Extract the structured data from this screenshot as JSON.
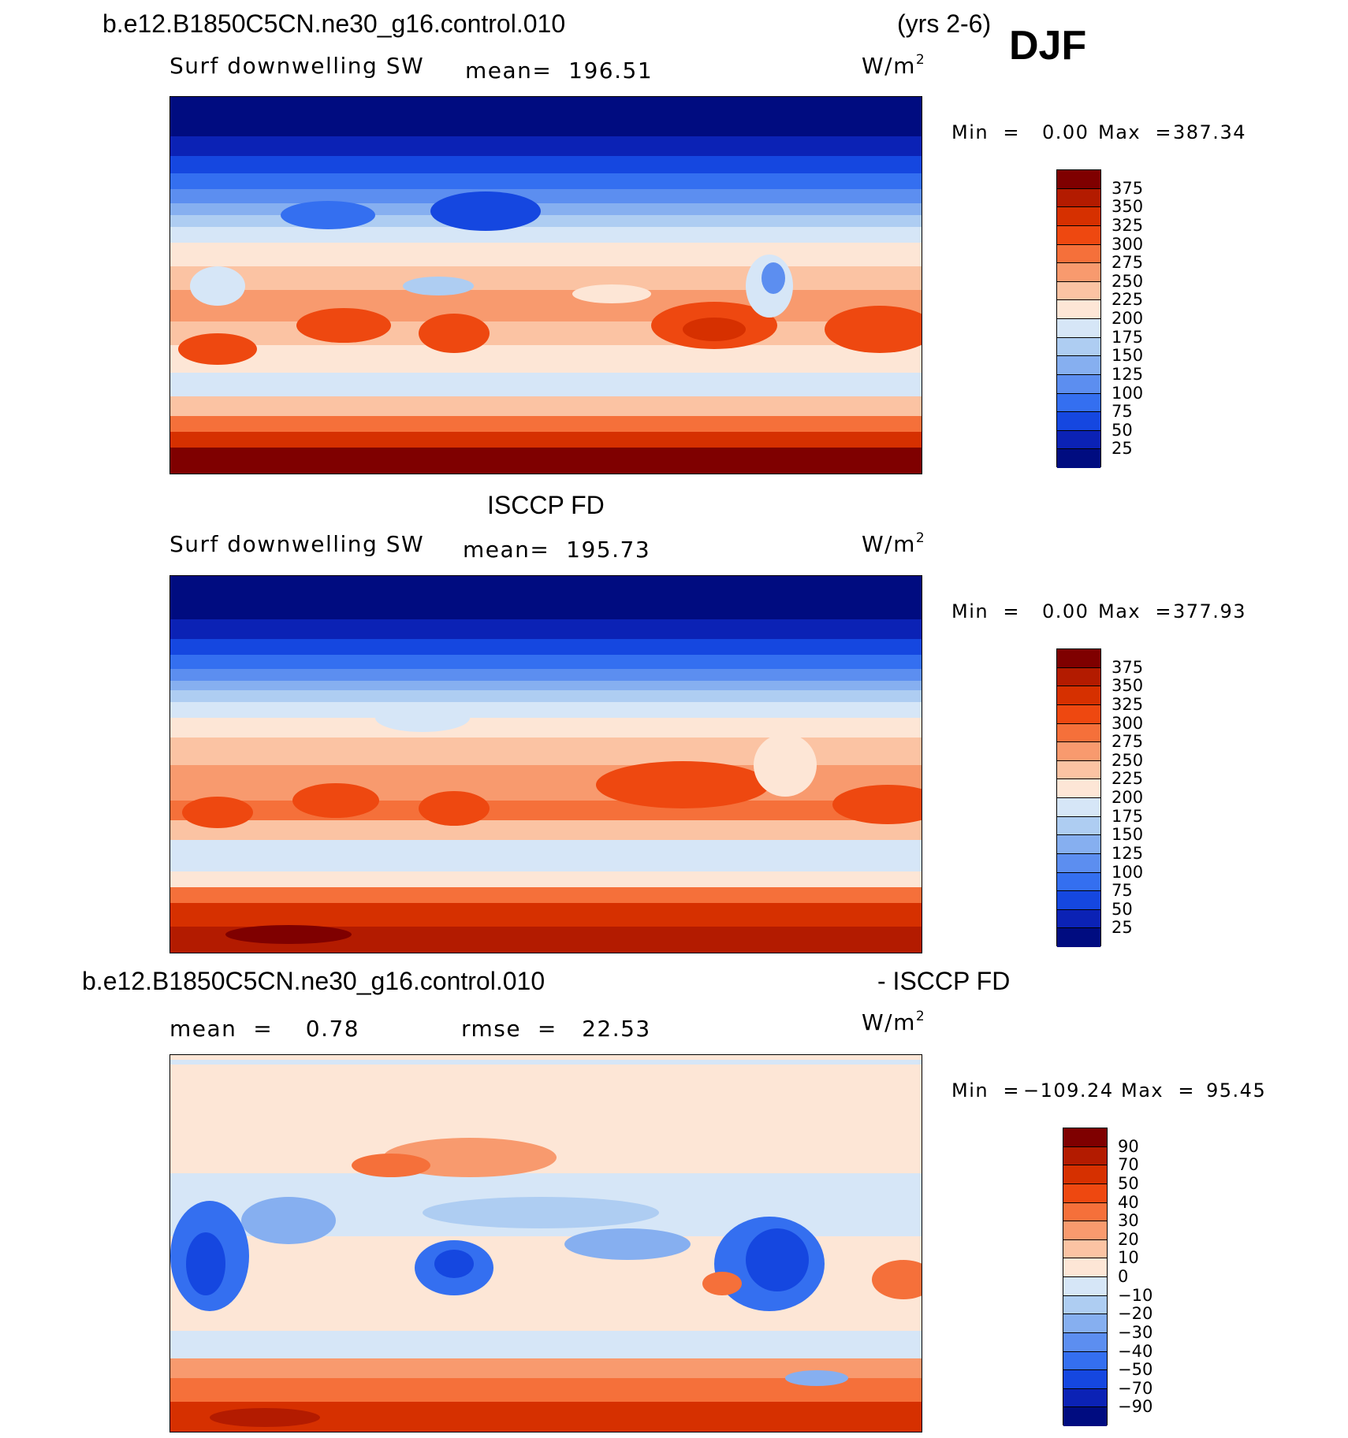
{
  "header": {
    "case_name": "b.e12.B1850C5CN.ne30_g16.control.010",
    "years": "(yrs 2-6)",
    "season": "DJF"
  },
  "panels": [
    {
      "id": "model",
      "title": "",
      "variable": "Surf downwelling SW",
      "mean_text": "mean=  196.51",
      "units": "W/m",
      "units_sup": "2",
      "min_label": "Min  =",
      "min_value": "0.00",
      "max_label": "Max  =",
      "max_value": "387.34"
    },
    {
      "id": "obs",
      "title": "ISCCP FD",
      "variable": "Surf downwelling SW",
      "mean_text": "mean=  195.73",
      "units": "W/m",
      "units_sup": "2",
      "min_label": "Min  =",
      "min_value": "0.00",
      "max_label": "Max  =",
      "max_value": "377.93"
    },
    {
      "id": "diff",
      "title_left": "b.e12.B1850C5CN.ne30_g16.control.010",
      "title_right": "- ISCCP FD",
      "mean_text": "mean  =    0.78",
      "rmse_text": "rmse  =   22.53",
      "units": "W/m",
      "units_sup": "2",
      "min_label": "Min  =",
      "min_value": "−109.24",
      "max_label": "Max  =",
      "max_value": "95.45"
    }
  ],
  "colorbars": {
    "sw": {
      "labels": [
        "375",
        "350",
        "325",
        "300",
        "275",
        "250",
        "225",
        "200",
        "175",
        "150",
        "125",
        "100",
        "75",
        "50",
        "25"
      ],
      "colors": [
        "#7f0000",
        "#b31b00",
        "#d63000",
        "#ee4810",
        "#f5703a",
        "#f89a6e",
        "#fbc3a3",
        "#fde6d6",
        "#d6e6f7",
        "#aecdf2",
        "#86aff0",
        "#5c8ef0",
        "#346ff0",
        "#1547e0",
        "#0b22b5",
        "#000c80"
      ]
    },
    "diff": {
      "labels": [
        "90",
        "70",
        "50",
        "40",
        "30",
        "20",
        "10",
        "0",
        "−10",
        "−20",
        "−30",
        "−40",
        "−50",
        "−70",
        "−90"
      ],
      "colors": [
        "#7f0000",
        "#b31b00",
        "#d63000",
        "#ee4810",
        "#f5703a",
        "#f89a6e",
        "#fbc3a3",
        "#fde6d6",
        "#d6e6f7",
        "#aecdf2",
        "#86aff0",
        "#5c8ef0",
        "#346ff0",
        "#1547e0",
        "#0b22b5",
        "#000c80"
      ]
    }
  }
}
